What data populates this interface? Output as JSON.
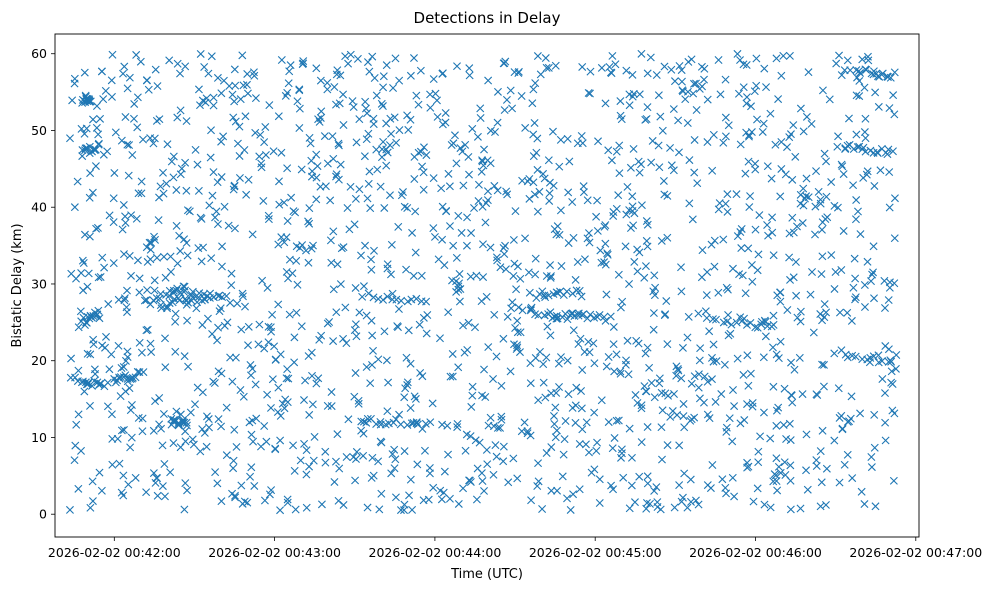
{
  "chart_data": {
    "type": "scatter",
    "title": "Detections in Delay",
    "xlabel": "Time (UTC)",
    "ylabel": "Bistatic Delay (km)",
    "marker": "x",
    "color": "#1f77b4",
    "grid": false,
    "x_unit": "minutes since 2026-02-02 00:42:00",
    "xlim": [
      -0.37,
      5.02
    ],
    "ylim": [
      -2.97,
      62.57
    ],
    "x_ticks": [
      0,
      1,
      2,
      3,
      4,
      5
    ],
    "x_tick_labels": [
      "2026-02-02 00:42:00",
      "2026-02-02 00:43:00",
      "2026-02-02 00:44:00",
      "2026-02-02 00:45:00",
      "2026-02-02 00:46:00",
      "2026-02-02 00:47:00"
    ],
    "y_ticks": [
      0,
      10,
      20,
      30,
      40,
      50,
      60
    ],
    "y_tick_labels": [
      "0",
      "10",
      "20",
      "30",
      "40",
      "50",
      "60"
    ],
    "x_data_range": [
      -0.28,
      4.88
    ],
    "y_data_range": [
      0.5,
      60
    ],
    "n_points": 2000,
    "random_seed": 20260202,
    "tracks": [
      {
        "x": [
          -0.22,
          -0.05
        ],
        "y": [
          17,
          17
        ]
      },
      {
        "x": [
          0.0,
          0.18
        ],
        "y": [
          17.2,
          18.5
        ]
      },
      {
        "x": [
          0.2,
          0.45
        ],
        "y": [
          27.5,
          29.5
        ]
      },
      {
        "x": [
          0.35,
          0.45
        ],
        "y": [
          12,
          12
        ]
      },
      {
        "x": [
          0.3,
          0.55
        ],
        "y": [
          27,
          29
        ]
      },
      {
        "x": [
          0.45,
          0.7
        ],
        "y": [
          27.6,
          28.5
        ]
      },
      {
        "x": [
          1.55,
          1.95
        ],
        "y": [
          28.5,
          27.5
        ]
      },
      {
        "x": [
          1.55,
          1.9
        ],
        "y": [
          12,
          12
        ]
      },
      {
        "x": [
          2.65,
          3.05
        ],
        "y": [
          26,
          25.5
        ]
      },
      {
        "x": [
          2.6,
          2.9
        ],
        "y": [
          28.5,
          29
        ]
      },
      {
        "x": [
          2.55,
          3.1
        ],
        "y": [
          26.5,
          25.5
        ]
      },
      {
        "x": [
          3.7,
          4.1
        ],
        "y": [
          25.5,
          24.5
        ]
      },
      {
        "x": [
          4.5,
          4.85
        ],
        "y": [
          21,
          20
        ]
      },
      {
        "x": [
          4.55,
          4.85
        ],
        "y": [
          48,
          47
        ]
      },
      {
        "x": [
          4.6,
          4.85
        ],
        "y": [
          58,
          57
        ]
      },
      {
        "x": [
          -0.2,
          -0.15
        ],
        "y": [
          54,
          54
        ]
      },
      {
        "x": [
          -0.2,
          -0.1
        ],
        "y": [
          47,
          48
        ]
      },
      {
        "x": [
          -0.2,
          -0.1
        ],
        "y": [
          25,
          26
        ]
      }
    ]
  }
}
